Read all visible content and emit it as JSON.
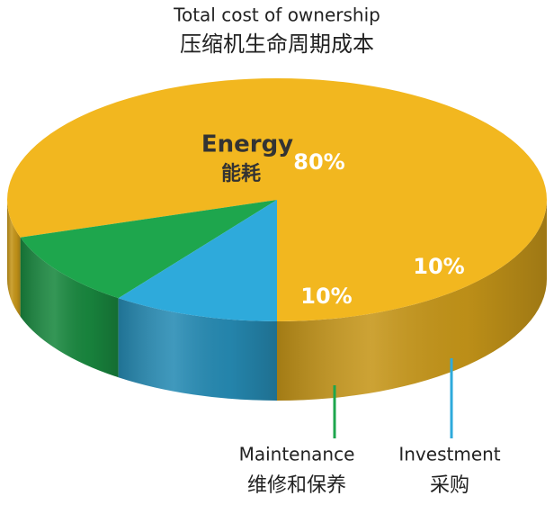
{
  "chart_data": {
    "type": "pie",
    "title": "Total cost of ownership",
    "subtitle": "压缩机生命周期成本",
    "categories": [
      "Energy",
      "Maintenance",
      "Investment"
    ],
    "category_translations": [
      "能耗",
      "维修和保养",
      "采购"
    ],
    "values": [
      80,
      10,
      10
    ],
    "value_labels": [
      "80%",
      "10%",
      "10%"
    ],
    "colors": [
      "#f2b71f",
      "#1ea64d",
      "#2eaadb"
    ]
  }
}
